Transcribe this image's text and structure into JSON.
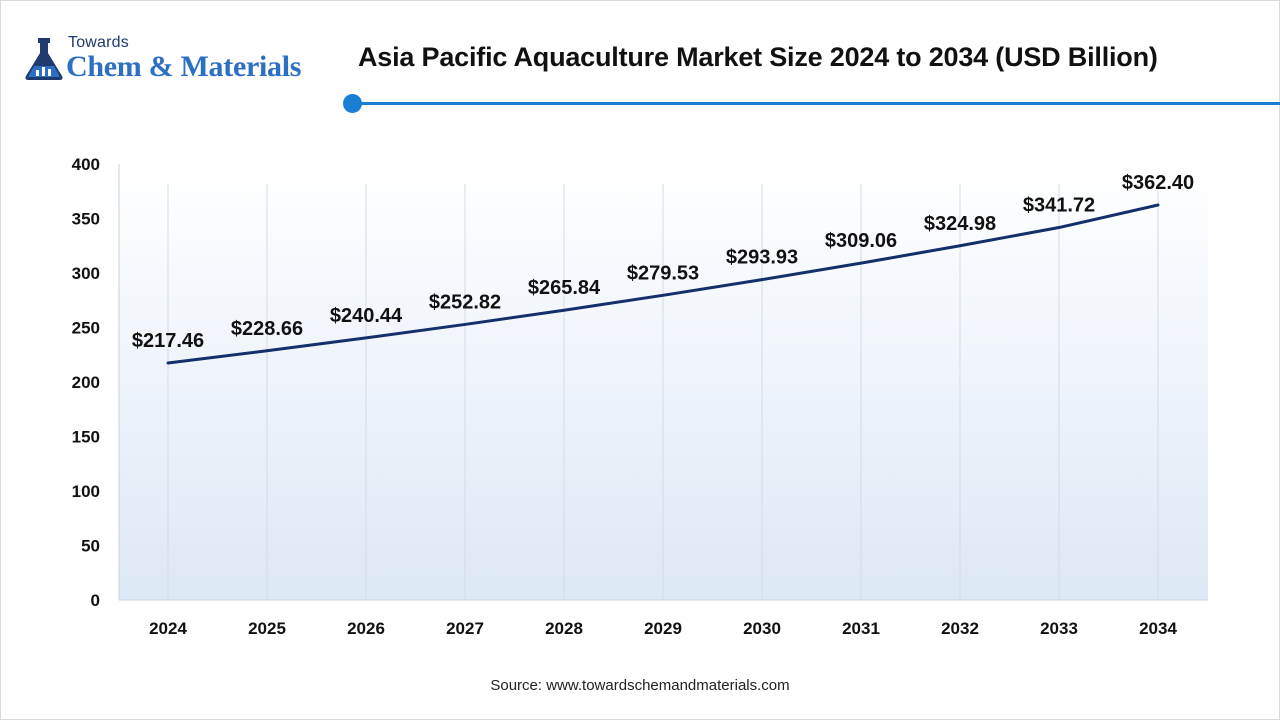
{
  "logo": {
    "top_text": "Towards",
    "main_text": "Chem & Materials"
  },
  "title": "Asia Pacific Aquaculture Market Size 2024 to 2034 (USD Billion)",
  "source": "Source: www.towardschemandmaterials.com",
  "colors": {
    "line": "#13306b",
    "accent": "#1a7fd4",
    "area_top": "#ffffff",
    "area_bottom": "#dde8f6"
  },
  "chart_data": {
    "type": "line",
    "title": "Asia Pacific Aquaculture Market Size 2024 to 2034 (USD Billion)",
    "xlabel": "",
    "ylabel": "",
    "categories": [
      "2024",
      "2025",
      "2026",
      "2027",
      "2028",
      "2029",
      "2030",
      "2031",
      "2032",
      "2033",
      "2034"
    ],
    "series": [
      {
        "values": [
          217.46,
          228.66,
          240.44,
          252.82,
          265.84,
          279.53,
          293.93,
          309.06,
          324.98,
          341.72,
          362.4
        ],
        "data_labels": [
          "$217.46",
          "$228.66",
          "$240.44",
          "$252.82",
          "$265.84",
          "$279.53",
          "$293.93",
          "$309.06",
          "$324.98",
          "$341.72",
          "$362.40"
        ]
      }
    ],
    "ylim": [
      0,
      400
    ],
    "yticks": [
      0,
      50,
      100,
      150,
      200,
      250,
      300,
      350,
      400
    ],
    "grid": "vertical",
    "legend": "none"
  }
}
